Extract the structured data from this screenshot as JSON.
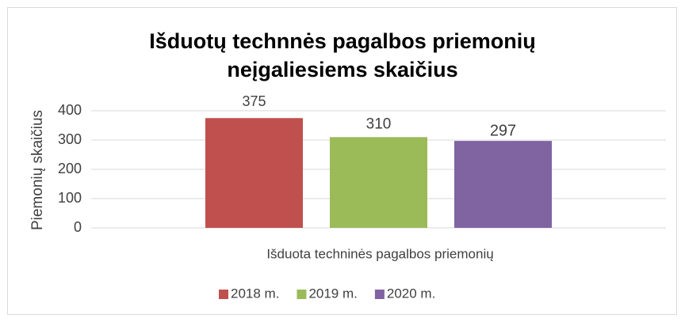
{
  "chart_data": {
    "type": "bar",
    "title": "Išduotų technnės pagalbos priemonių neįgaliesiems skaičius",
    "y_label": "Piemonių skaičius",
    "categories": [
      "Išduota techninės pagalbos priemonių"
    ],
    "series": [
      {
        "name": "2018 m.",
        "color": "#c0504d",
        "values": [
          375
        ]
      },
      {
        "name": "2019 m.",
        "color": "#9bbb59",
        "values": [
          310
        ]
      },
      {
        "name": "2020 m.",
        "color": "#8064a2",
        "values": [
          297
        ]
      }
    ],
    "ylim": [
      0,
      400
    ],
    "yticks": [
      0,
      100,
      200,
      300,
      400
    ],
    "grid": true,
    "legend": "bottom"
  }
}
